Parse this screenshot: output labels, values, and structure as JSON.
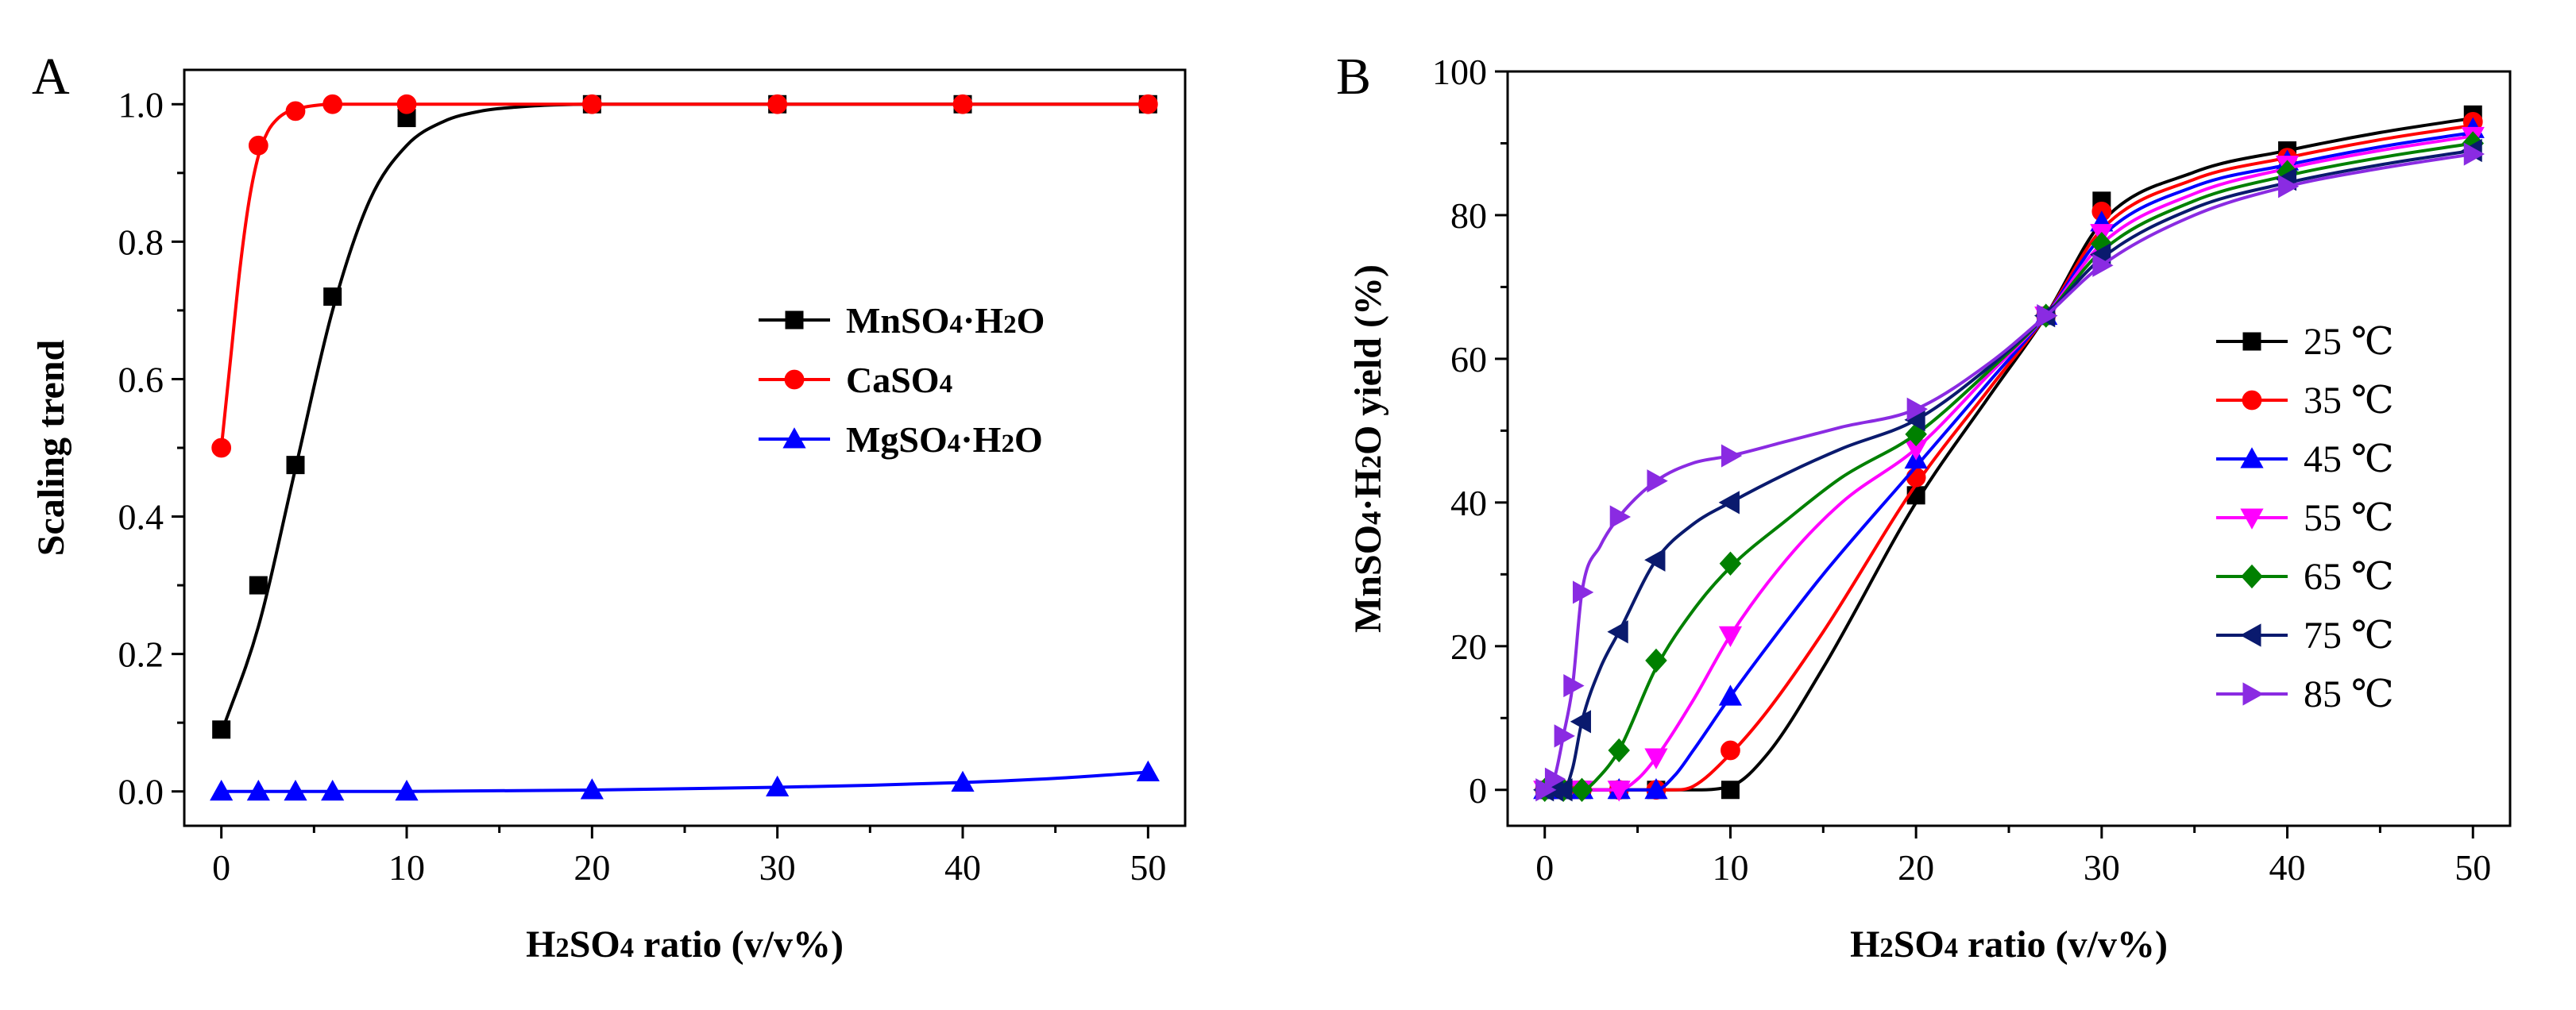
{
  "colors": {
    "black": "#000000",
    "red": "#ff0000",
    "blue": "#0000ff",
    "magenta": "#ff00ff",
    "green": "#008000",
    "navy": "#0a1a6e",
    "violet": "#8a2be2"
  },
  "chart_data": [
    {
      "type": "scatter-line",
      "panel_label": "A",
      "title": "",
      "xlabel": "H2SO4 ratio (v/v%)",
      "ylabel": "Scaling trend",
      "xlim": [
        -2,
        52
      ],
      "ylim": [
        -0.05,
        1.05
      ],
      "xticks": [
        0,
        10,
        20,
        30,
        40,
        50
      ],
      "xtick_labels": [
        "0",
        "10",
        "20",
        "30",
        "40",
        "50"
      ],
      "yticks": [
        0.0,
        0.2,
        0.4,
        0.6,
        0.8,
        1.0
      ],
      "ytick_labels": [
        "0.0",
        "0.2",
        "0.4",
        "0.6",
        "0.8",
        "1.0"
      ],
      "legend_position": "center-right",
      "series": [
        {
          "name": "MnSO4·H2O",
          "color": "#000000",
          "marker": "square",
          "x": [
            0,
            2,
            4,
            6,
            10,
            20,
            30,
            40,
            50
          ],
          "values": [
            0.09,
            0.3,
            0.475,
            0.72,
            0.98,
            1.0,
            1.0,
            1.0,
            1.0
          ],
          "curve_x": [
            0,
            2,
            4,
            6,
            8,
            10,
            12,
            14,
            16,
            18,
            20,
            30,
            40,
            50
          ],
          "curve_y": [
            0.085,
            0.24,
            0.47,
            0.7,
            0.86,
            0.94,
            0.975,
            0.99,
            0.996,
            0.999,
            1.0,
            1.0,
            1.0,
            1.0
          ]
        },
        {
          "name": "CaSO4",
          "color": "#ff0000",
          "marker": "circle",
          "x": [
            0,
            2,
            4,
            6,
            10,
            20,
            30,
            40,
            50
          ],
          "values": [
            0.5,
            0.94,
            0.99,
            1.0,
            1.0,
            1.0,
            1.0,
            1.0,
            1.0
          ],
          "curve_x": [
            0,
            0.5,
            1,
            1.5,
            2,
            2.5,
            3,
            3.5,
            4,
            5,
            6,
            10,
            20,
            30,
            40,
            50
          ],
          "curve_y": [
            0.5,
            0.63,
            0.76,
            0.86,
            0.925,
            0.96,
            0.978,
            0.988,
            0.993,
            0.998,
            1.0,
            1.0,
            1.0,
            1.0,
            1.0,
            1.0
          ]
        },
        {
          "name": "MgSO4·H2O",
          "color": "#0000ff",
          "marker": "triangle-up",
          "x": [
            0,
            2,
            4,
            6,
            10,
            20,
            30,
            40,
            50
          ],
          "values": [
            0.0,
            0.0,
            0.0,
            0.0,
            0.0,
            0.002,
            0.006,
            0.013,
            0.028
          ],
          "curve_x": [
            0,
            10,
            20,
            30,
            35,
            40,
            45,
            50
          ],
          "curve_y": [
            0.0,
            0.0,
            0.002,
            0.006,
            0.009,
            0.013,
            0.019,
            0.028
          ]
        }
      ]
    },
    {
      "type": "scatter-line",
      "panel_label": "B",
      "title": "",
      "xlabel": "H2SO4 ratio (v/v%)",
      "ylabel": "MnSO4·H2O  yield (%)",
      "xlim": [
        -2,
        52
      ],
      "ylim": [
        -5,
        100
      ],
      "xticks": [
        0,
        10,
        20,
        30,
        40,
        50
      ],
      "xtick_labels": [
        "0",
        "10",
        "20",
        "30",
        "40",
        "50"
      ],
      "yticks": [
        0,
        20,
        40,
        60,
        80,
        100
      ],
      "ytick_labels": [
        "0",
        "20",
        "40",
        "60",
        "80",
        "100"
      ],
      "legend_position": "center-right",
      "series": [
        {
          "name": "25 ℃",
          "color": "#000000",
          "marker": "square",
          "x": [
            0,
            1,
            2,
            4,
            6,
            10,
            20,
            27,
            30,
            40,
            50
          ],
          "values": [
            0,
            0,
            0,
            0,
            0,
            0,
            41,
            66,
            82,
            89,
            94
          ],
          "curve_x": [
            0,
            8,
            10,
            12,
            15,
            20,
            24,
            27,
            30,
            35,
            40,
            45,
            50
          ],
          "curve_y": [
            0,
            0,
            0.5,
            5,
            17,
            40,
            55,
            66,
            79,
            86,
            89,
            91.5,
            93.5
          ]
        },
        {
          "name": "35 ℃",
          "color": "#ff0000",
          "marker": "circle",
          "x": [
            0,
            1,
            2,
            4,
            6,
            10,
            20,
            27,
            30,
            40,
            50
          ],
          "values": [
            0,
            0,
            0,
            0,
            0,
            5.5,
            43.5,
            66,
            80.5,
            88,
            93
          ],
          "curve_x": [
            0,
            7,
            8,
            10,
            12,
            15,
            20,
            24,
            27,
            30,
            35,
            40,
            45,
            50
          ],
          "curve_y": [
            0,
            0,
            0.5,
            5,
            11,
            22,
            42.5,
            56,
            66,
            78,
            85,
            88,
            90.5,
            92.5
          ]
        },
        {
          "name": "45 ℃",
          "color": "#0000ff",
          "marker": "triangle-up",
          "x": [
            0,
            1,
            2,
            4,
            6,
            10,
            20,
            27,
            30,
            40,
            50
          ],
          "values": [
            0,
            0,
            0,
            0,
            0,
            13,
            46,
            66,
            79,
            87.5,
            92
          ],
          "curve_x": [
            0,
            6,
            7,
            8,
            10,
            12,
            15,
            20,
            24,
            27,
            30,
            35,
            40,
            45,
            50
          ],
          "curve_y": [
            0,
            0,
            2,
            5.5,
            13,
            20,
            30,
            45,
            57,
            66,
            77,
            84,
            87,
            89.5,
            91.5
          ]
        },
        {
          "name": "55 ℃",
          "color": "#ff00ff",
          "marker": "triangle-down",
          "x": [
            0,
            1,
            2,
            4,
            6,
            10,
            20,
            27,
            30,
            40,
            50
          ],
          "values": [
            0,
            0,
            0,
            0,
            4.5,
            21.5,
            47.5,
            66,
            77.5,
            87,
            91
          ],
          "curve_x": [
            0,
            4,
            5,
            6,
            8,
            10,
            13,
            16,
            20,
            24,
            27,
            30,
            35,
            40,
            45,
            50
          ],
          "curve_y": [
            0,
            0,
            1.5,
            4.5,
            12.5,
            21.5,
            32,
            40,
            47.5,
            58,
            66,
            76,
            83,
            86.5,
            89,
            91
          ]
        },
        {
          "name": "65 ℃",
          "color": "#008000",
          "marker": "diamond",
          "x": [
            0,
            1,
            2,
            4,
            6,
            10,
            20,
            27,
            30,
            40,
            50
          ],
          "values": [
            0,
            0,
            0,
            5.5,
            18,
            31.5,
            49.5,
            66,
            76,
            86,
            90
          ],
          "curve_x": [
            0,
            2,
            3,
            4,
            6,
            8,
            10,
            13,
            16,
            20,
            24,
            27,
            30,
            35,
            40,
            45,
            50
          ],
          "curve_y": [
            0,
            0,
            2,
            5.5,
            17,
            25,
            31,
            37.5,
            43.5,
            49.5,
            58.5,
            66,
            75,
            82,
            85.5,
            88,
            90
          ]
        },
        {
          "name": "75 ℃",
          "color": "#0a1a6e",
          "marker": "triangle-left",
          "x": [
            0,
            0.5,
            1,
            2,
            4,
            6,
            10,
            20,
            27,
            30,
            40,
            50
          ],
          "values": [
            0,
            0,
            0,
            9.5,
            22,
            32,
            40,
            51.5,
            66,
            74.5,
            85,
            89
          ],
          "curve_x": [
            0,
            1,
            1.5,
            2,
            3,
            4,
            6,
            8,
            10,
            13,
            16,
            20,
            24,
            27,
            30,
            35,
            40,
            45,
            50
          ],
          "curve_y": [
            0,
            0,
            3,
            9.5,
            17,
            22,
            32,
            37,
            40,
            44,
            47.5,
            51.5,
            59,
            66,
            74,
            81,
            84.5,
            87,
            89
          ]
        },
        {
          "name": "85 ℃",
          "color": "#8a2be2",
          "marker": "triangle-right",
          "x": [
            0,
            0.5,
            1,
            1.5,
            2,
            4,
            6,
            10,
            20,
            27,
            30,
            40,
            50
          ],
          "values": [
            0,
            1.5,
            7.5,
            14.5,
            27.5,
            38,
            43,
            46.5,
            53,
            66,
            73,
            84,
            88.5
          ],
          "curve_x": [
            0,
            0.5,
            1,
            1.5,
            2,
            3,
            4,
            6,
            8,
            10,
            13,
            16,
            20,
            24,
            27,
            30,
            35,
            40,
            45,
            50
          ],
          "curve_y": [
            0,
            1.5,
            7.5,
            14.5,
            27.5,
            34,
            38,
            43,
            45.5,
            46.5,
            48.5,
            50.5,
            53,
            59.5,
            66,
            73,
            80,
            84,
            86.5,
            88.5
          ]
        }
      ]
    }
  ]
}
